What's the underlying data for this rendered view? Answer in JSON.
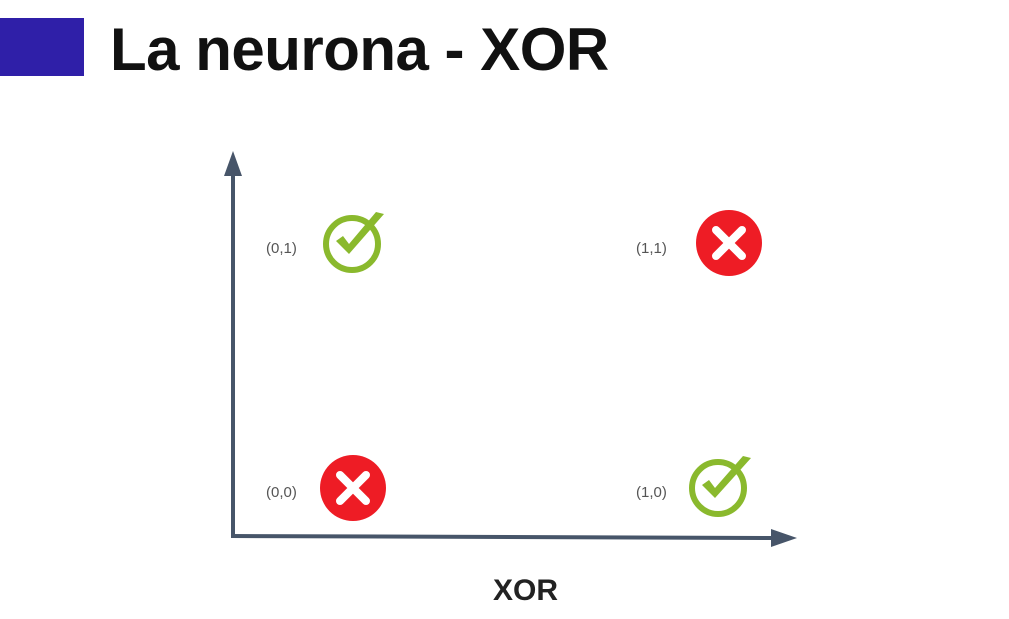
{
  "header": {
    "title": "La neurona - XOR",
    "accent_color": "#2f1fa8"
  },
  "diagram": {
    "axis_color": "#475569",
    "points": [
      {
        "label": "(0,1)",
        "x": 0,
        "y": 1,
        "result": "true",
        "icon": "green-check-icon",
        "color": "#8ab92d"
      },
      {
        "label": "(1,1)",
        "x": 1,
        "y": 1,
        "result": "false",
        "icon": "red-x-icon",
        "color": "#ee1c25"
      },
      {
        "label": "(0,0)",
        "x": 0,
        "y": 0,
        "result": "false",
        "icon": "red-x-icon",
        "color": "#ee1c25"
      },
      {
        "label": "(1,0)",
        "x": 1,
        "y": 0,
        "result": "true",
        "icon": "green-check-icon",
        "color": "#8ab92d"
      }
    ],
    "caption": "XOR"
  }
}
